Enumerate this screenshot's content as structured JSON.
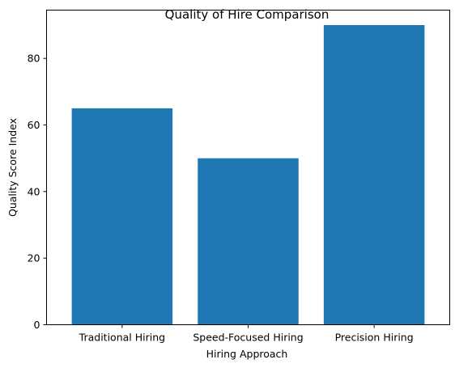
{
  "chart_data": {
    "type": "bar",
    "title": "Quality of Hire Comparison",
    "xlabel": "Hiring Approach",
    "ylabel": "Quality Score Index",
    "categories": [
      "Traditional Hiring",
      "Speed-Focused Hiring",
      "Precision Hiring"
    ],
    "values": [
      65,
      50,
      90
    ],
    "ylim": [
      0,
      94.5
    ],
    "yticks": [
      0,
      20,
      40,
      60,
      80
    ],
    "bar_color": "#1f77b4",
    "grid": false,
    "legend": "none"
  }
}
